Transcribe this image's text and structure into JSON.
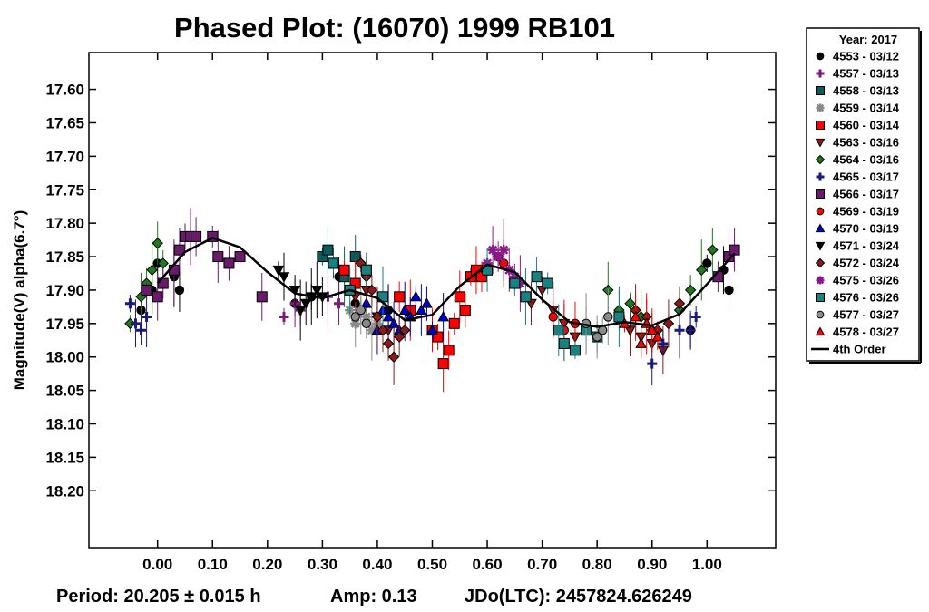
{
  "chart_data": {
    "type": "scatter",
    "title": "Phased Plot: (16070) 1999 RB101",
    "xlabel": "",
    "ylabel": "Magnitude(V) alpha(6.7°)",
    "xlim": [
      -0.125,
      1.125
    ],
    "ylim": [
      18.285,
      17.545
    ],
    "y_inverted": true,
    "xticks": [
      "0.00",
      "0.10",
      "0.20",
      "0.30",
      "0.40",
      "0.50",
      "0.60",
      "0.70",
      "0.80",
      "0.90",
      "1.00"
    ],
    "yticks": [
      "17.60",
      "17.65",
      "17.70",
      "17.75",
      "17.80",
      "17.85",
      "17.90",
      "17.95",
      "18.00",
      "18.05",
      "18.10",
      "18.15",
      "18.20"
    ],
    "grid": false,
    "legend_position": "right",
    "legend_title": "Year: 2017",
    "footer": {
      "period": "Period: 20.205 ± 0.015 h",
      "amp": "Amp: 0.13",
      "jdo": "JDo(LTC): 2457824.626249"
    },
    "fit": {
      "name": "4th Order",
      "x": [
        0.0,
        0.05,
        0.1,
        0.15,
        0.2,
        0.25,
        0.3,
        0.35,
        0.4,
        0.45,
        0.5,
        0.55,
        0.6,
        0.65,
        0.7,
        0.75,
        0.8,
        0.85,
        0.9,
        0.95,
        1.0,
        1.05
      ],
      "y": [
        17.89,
        17.843,
        17.822,
        17.836,
        17.873,
        17.905,
        17.912,
        17.9,
        17.912,
        17.945,
        17.937,
        17.894,
        17.862,
        17.873,
        17.914,
        17.948,
        17.955,
        17.948,
        17.953,
        17.936,
        17.891,
        17.845
      ]
    },
    "series": [
      {
        "name": "4553 - 03/12",
        "color": "#000000",
        "marker": "circle",
        "points": [
          [
            -0.03,
            17.93
          ],
          [
            -0.01,
            17.9
          ],
          [
            0.0,
            17.86
          ],
          [
            0.03,
            17.88
          ],
          [
            0.04,
            17.9
          ],
          [
            0.25,
            17.92
          ],
          [
            0.28,
            17.91
          ],
          [
            0.33,
            17.88
          ],
          [
            0.36,
            17.92
          ],
          [
            0.42,
            17.93
          ],
          [
            0.97,
            17.96
          ],
          [
            1.0,
            17.86
          ],
          [
            1.03,
            17.87
          ],
          [
            1.04,
            17.9
          ]
        ]
      },
      {
        "name": "4557 - 03/13",
        "color": "#7b1a7b",
        "marker": "plus",
        "points": [
          [
            0.23,
            17.94
          ],
          [
            0.25,
            17.92
          ],
          [
            0.26,
            17.93
          ],
          [
            0.31,
            17.91
          ],
          [
            0.33,
            17.92
          ],
          [
            0.37,
            17.93
          ]
        ]
      },
      {
        "name": "4558 - 03/13",
        "color": "#0d5a5a",
        "marker": "square",
        "points": [
          [
            0.3,
            17.85
          ],
          [
            0.31,
            17.84
          ],
          [
            0.32,
            17.86
          ],
          [
            0.34,
            17.88
          ],
          [
            0.36,
            17.85
          ],
          [
            0.38,
            17.87
          ]
        ]
      },
      {
        "name": "4559 - 03/14",
        "color": "#8a8a8a",
        "marker": "asterisk",
        "points": [
          [
            0.35,
            17.93
          ],
          [
            0.36,
            17.95
          ],
          [
            0.38,
            17.94
          ],
          [
            0.39,
            17.96
          ],
          [
            0.4,
            17.95
          ]
        ]
      },
      {
        "name": "4560 - 03/14",
        "color": "#ff0000",
        "marker": "square",
        "points": [
          [
            0.34,
            17.87
          ],
          [
            0.36,
            17.89
          ],
          [
            0.44,
            17.91
          ],
          [
            0.46,
            17.93
          ],
          [
            0.5,
            17.96
          ],
          [
            0.51,
            17.97
          ],
          [
            0.52,
            18.01
          ],
          [
            0.53,
            17.99
          ],
          [
            0.54,
            17.95
          ],
          [
            0.55,
            17.91
          ],
          [
            0.56,
            17.93
          ],
          [
            0.57,
            17.88
          ],
          [
            0.58,
            17.87
          ],
          [
            0.59,
            17.88
          ]
        ]
      },
      {
        "name": "4563 - 03/16",
        "color": "#8b1a1a",
        "marker": "triangle-down",
        "points": [
          [
            0.36,
            17.91
          ],
          [
            0.38,
            17.9
          ],
          [
            0.4,
            17.94
          ],
          [
            0.42,
            17.96
          ],
          [
            0.68,
            17.92
          ],
          [
            0.7,
            17.9
          ],
          [
            0.72,
            17.93
          ],
          [
            0.74,
            17.95
          ],
          [
            0.76,
            17.97
          ],
          [
            0.86,
            17.96
          ],
          [
            0.88,
            17.97
          ],
          [
            0.9,
            17.98
          ],
          [
            0.92,
            17.99
          ]
        ]
      },
      {
        "name": "4564 - 03/16",
        "color": "#1f7a1f",
        "marker": "diamond",
        "points": [
          [
            -0.05,
            17.95
          ],
          [
            -0.03,
            17.91
          ],
          [
            -0.02,
            17.89
          ],
          [
            -0.01,
            17.87
          ],
          [
            0.0,
            17.83
          ],
          [
            0.01,
            17.86
          ],
          [
            0.82,
            17.9
          ],
          [
            0.84,
            17.93
          ],
          [
            0.86,
            17.92
          ],
          [
            0.88,
            17.94
          ],
          [
            0.9,
            17.96
          ],
          [
            0.93,
            17.95
          ],
          [
            0.95,
            17.93
          ],
          [
            0.97,
            17.9
          ],
          [
            0.99,
            17.87
          ],
          [
            1.01,
            17.84
          ]
        ]
      },
      {
        "name": "4565 - 03/17",
        "color": "#1a1a7a",
        "marker": "plus",
        "points": [
          [
            -0.05,
            17.92
          ],
          [
            -0.04,
            17.95
          ],
          [
            -0.03,
            17.96
          ],
          [
            -0.02,
            17.94
          ],
          [
            0.9,
            18.01
          ],
          [
            0.92,
            17.98
          ],
          [
            0.95,
            17.96
          ],
          [
            0.97,
            17.96
          ],
          [
            0.98,
            17.94
          ]
        ]
      },
      {
        "name": "4566 - 03/17",
        "color": "#6a1a6a",
        "marker": "square",
        "points": [
          [
            -0.02,
            17.9
          ],
          [
            0.0,
            17.91
          ],
          [
            0.01,
            17.89
          ],
          [
            0.03,
            17.87
          ],
          [
            0.04,
            17.84
          ],
          [
            0.05,
            17.82
          ],
          [
            0.06,
            17.82
          ],
          [
            0.07,
            17.82
          ],
          [
            0.1,
            17.82
          ],
          [
            0.11,
            17.85
          ],
          [
            0.13,
            17.86
          ],
          [
            0.15,
            17.85
          ],
          [
            0.19,
            17.91
          ],
          [
            1.02,
            17.88
          ],
          [
            1.04,
            17.85
          ],
          [
            1.05,
            17.84
          ]
        ]
      },
      {
        "name": "4569 - 03/19",
        "color": "#ff0000",
        "marker": "circle",
        "points": [
          [
            0.62,
            17.85
          ],
          [
            0.63,
            17.86
          ],
          [
            0.72,
            17.94
          ],
          [
            0.74,
            17.96
          ],
          [
            0.76,
            17.95
          ]
        ]
      },
      {
        "name": "4570 - 03/19",
        "color": "#0000cc",
        "marker": "triangle-up",
        "points": [
          [
            0.38,
            17.92
          ],
          [
            0.4,
            17.96
          ],
          [
            0.41,
            17.93
          ],
          [
            0.42,
            17.94
          ],
          [
            0.43,
            17.95
          ],
          [
            0.44,
            17.96
          ],
          [
            0.45,
            17.93
          ],
          [
            0.46,
            17.94
          ],
          [
            0.47,
            17.91
          ],
          [
            0.48,
            17.93
          ],
          [
            0.49,
            17.92
          ],
          [
            0.5,
            17.96
          ],
          [
            0.52,
            17.94
          ]
        ]
      },
      {
        "name": "4571 - 03/24",
        "color": "#000000",
        "marker": "triangle-down",
        "points": [
          [
            0.22,
            17.87
          ],
          [
            0.23,
            17.88
          ],
          [
            0.25,
            17.9
          ],
          [
            0.26,
            17.93
          ],
          [
            0.27,
            17.92
          ],
          [
            0.28,
            17.91
          ],
          [
            0.29,
            17.9
          ],
          [
            0.3,
            17.91
          ]
        ]
      },
      {
        "name": "4572 - 03/24",
        "color": "#8b1a1a",
        "marker": "diamond",
        "points": [
          [
            0.37,
            17.86
          ],
          [
            0.38,
            17.88
          ],
          [
            0.39,
            17.9
          ],
          [
            0.4,
            17.94
          ],
          [
            0.41,
            17.96
          ],
          [
            0.42,
            17.98
          ],
          [
            0.43,
            18.0
          ],
          [
            0.44,
            17.97
          ],
          [
            0.45,
            17.96
          ],
          [
            0.87,
            17.93
          ],
          [
            0.89,
            17.94
          ],
          [
            0.91,
            17.96
          ],
          [
            0.93,
            17.95
          ],
          [
            0.95,
            17.92
          ]
        ]
      },
      {
        "name": "4575 - 03/26",
        "color": "#8a1a8a",
        "marker": "asterisk",
        "points": [
          [
            0.6,
            17.86
          ],
          [
            0.61,
            17.84
          ],
          [
            0.62,
            17.85
          ],
          [
            0.63,
            17.84
          ],
          [
            0.64,
            17.87
          ],
          [
            0.65,
            17.88
          ],
          [
            0.66,
            17.89
          ]
        ]
      },
      {
        "name": "4576 - 03/26",
        "color": "#1a8080",
        "marker": "square",
        "points": [
          [
            0.32,
            17.86
          ],
          [
            0.35,
            17.9
          ],
          [
            0.38,
            17.87
          ],
          [
            0.41,
            17.91
          ],
          [
            0.6,
            17.87
          ],
          [
            0.65,
            17.89
          ],
          [
            0.67,
            17.91
          ],
          [
            0.69,
            17.88
          ],
          [
            0.71,
            17.89
          ],
          [
            0.73,
            17.96
          ],
          [
            0.74,
            17.98
          ],
          [
            0.76,
            17.99
          ],
          [
            0.78,
            17.96
          ],
          [
            0.8,
            17.97
          ],
          [
            0.84,
            17.94
          ]
        ]
      },
      {
        "name": "4577 - 03/27",
        "color": "#8a8a8a",
        "marker": "circle",
        "points": [
          [
            0.36,
            17.94
          ],
          [
            0.37,
            17.93
          ],
          [
            0.38,
            17.95
          ],
          [
            0.78,
            17.95
          ],
          [
            0.8,
            17.97
          ],
          [
            0.81,
            17.96
          ],
          [
            0.82,
            17.94
          ]
        ]
      },
      {
        "name": "4578 - 03/27",
        "color": "#ff0000",
        "marker": "triangle-up",
        "points": [
          [
            0.85,
            17.95
          ],
          [
            0.87,
            17.94
          ],
          [
            0.88,
            17.98
          ],
          [
            0.89,
            17.95
          ],
          [
            0.9,
            17.96
          ],
          [
            0.91,
            17.97
          ]
        ]
      }
    ]
  }
}
